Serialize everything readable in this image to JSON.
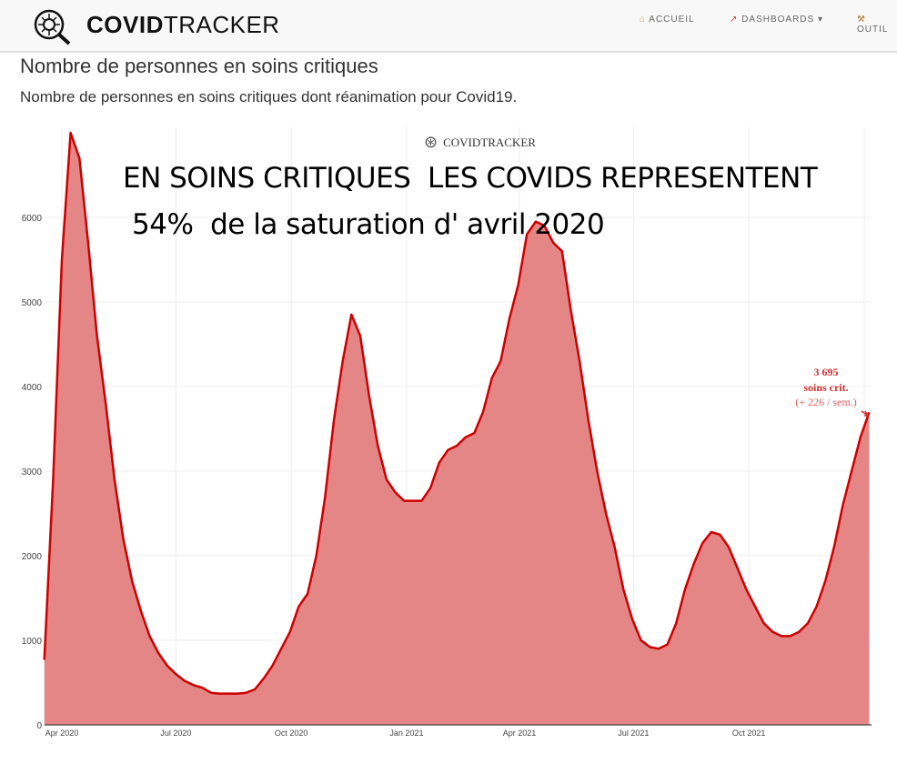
{
  "header": {
    "brand_bold": "COVID",
    "brand_light": "TRACKER",
    "nav": [
      {
        "icon": "house-icon",
        "label": "ACCUEIL"
      },
      {
        "icon": "chart-icon",
        "label": "DASHBOARDS"
      },
      {
        "icon": "tools-icon",
        "label": "OUTIL"
      }
    ]
  },
  "page": {
    "title": "Nombre de personnes en soins critiques",
    "subtitle": "Nombre de personnes en soins critiques dont réanimation pour Covid19."
  },
  "overlay": {
    "line1": "EN SOINS CRITIQUES  LES COVIDS REPRESENTENT",
    "line2": "54%  de la saturation d' avril 2020"
  },
  "watermark": "COVIDTRACKER",
  "colors": {
    "fill": "#e48080",
    "line": "#cc0000",
    "annotation": "#d03030"
  },
  "chart_data": {
    "type": "area",
    "title": "",
    "xlabel": "",
    "ylabel": "",
    "ylim": [
      0,
      7000
    ],
    "y_ticks": [
      0,
      1000,
      2000,
      3000,
      4000,
      5000,
      6000
    ],
    "x_ticks": [
      {
        "date": "2020-04-01",
        "label": "Apr 2020"
      },
      {
        "date": "2020-07-01",
        "label": "Jul 2020"
      },
      {
        "date": "2020-10-01",
        "label": "Oct 2020"
      },
      {
        "date": "2021-01-01",
        "label": "Jan 2021"
      },
      {
        "date": "2021-04-01",
        "label": "Apr 2021"
      },
      {
        "date": "2021-07-01",
        "label": "Jul 2021"
      },
      {
        "date": "2021-10-01",
        "label": "Oct 2021"
      },
      {
        "date": "2022-01-01",
        "label": ""
      }
    ],
    "grid": true,
    "annotation": {
      "value": "3 695",
      "label": "soins crit.",
      "change": "(+ 226 / sem.)"
    },
    "points": [
      [
        "2020-03-18",
        770
      ],
      [
        "2020-03-25",
        2900
      ],
      [
        "2020-04-01",
        5500
      ],
      [
        "2020-04-08",
        7000
      ],
      [
        "2020-04-15",
        6700
      ],
      [
        "2020-04-22",
        5700
      ],
      [
        "2020-04-29",
        4600
      ],
      [
        "2020-05-06",
        3800
      ],
      [
        "2020-05-13",
        2900
      ],
      [
        "2020-05-20",
        2200
      ],
      [
        "2020-05-27",
        1700
      ],
      [
        "2020-06-03",
        1350
      ],
      [
        "2020-06-10",
        1050
      ],
      [
        "2020-06-17",
        850
      ],
      [
        "2020-06-24",
        700
      ],
      [
        "2020-07-01",
        600
      ],
      [
        "2020-07-08",
        520
      ],
      [
        "2020-07-15",
        470
      ],
      [
        "2020-07-22",
        440
      ],
      [
        "2020-07-29",
        380
      ],
      [
        "2020-08-05",
        370
      ],
      [
        "2020-08-12",
        370
      ],
      [
        "2020-08-19",
        370
      ],
      [
        "2020-08-26",
        380
      ],
      [
        "2020-09-02",
        420
      ],
      [
        "2020-09-09",
        550
      ],
      [
        "2020-09-16",
        700
      ],
      [
        "2020-09-23",
        900
      ],
      [
        "2020-09-30",
        1100
      ],
      [
        "2020-10-07",
        1400
      ],
      [
        "2020-10-14",
        1550
      ],
      [
        "2020-10-21",
        2000
      ],
      [
        "2020-10-28",
        2700
      ],
      [
        "2020-11-04",
        3600
      ],
      [
        "2020-11-11",
        4300
      ],
      [
        "2020-11-18",
        4850
      ],
      [
        "2020-11-25",
        4600
      ],
      [
        "2020-12-02",
        3900
      ],
      [
        "2020-12-09",
        3300
      ],
      [
        "2020-12-16",
        2900
      ],
      [
        "2020-12-23",
        2750
      ],
      [
        "2020-12-30",
        2650
      ],
      [
        "2021-01-06",
        2650
      ],
      [
        "2021-01-13",
        2650
      ],
      [
        "2021-01-20",
        2800
      ],
      [
        "2021-01-27",
        3100
      ],
      [
        "2021-02-03",
        3250
      ],
      [
        "2021-02-10",
        3300
      ],
      [
        "2021-02-17",
        3400
      ],
      [
        "2021-02-24",
        3450
      ],
      [
        "2021-03-03",
        3700
      ],
      [
        "2021-03-10",
        4100
      ],
      [
        "2021-03-17",
        4300
      ],
      [
        "2021-03-24",
        4800
      ],
      [
        "2021-03-31",
        5200
      ],
      [
        "2021-04-07",
        5800
      ],
      [
        "2021-04-14",
        5950
      ],
      [
        "2021-04-21",
        5900
      ],
      [
        "2021-04-28",
        5700
      ],
      [
        "2021-05-05",
        5600
      ],
      [
        "2021-05-12",
        4900
      ],
      [
        "2021-05-19",
        4300
      ],
      [
        "2021-05-26",
        3600
      ],
      [
        "2021-06-02",
        3000
      ],
      [
        "2021-06-09",
        2500
      ],
      [
        "2021-06-16",
        2100
      ],
      [
        "2021-06-23",
        1600
      ],
      [
        "2021-06-30",
        1250
      ],
      [
        "2021-07-07",
        1000
      ],
      [
        "2021-07-14",
        920
      ],
      [
        "2021-07-21",
        900
      ],
      [
        "2021-07-28",
        950
      ],
      [
        "2021-08-04",
        1200
      ],
      [
        "2021-08-11",
        1600
      ],
      [
        "2021-08-18",
        1900
      ],
      [
        "2021-08-25",
        2150
      ],
      [
        "2021-09-01",
        2280
      ],
      [
        "2021-09-08",
        2250
      ],
      [
        "2021-09-15",
        2100
      ],
      [
        "2021-09-22",
        1850
      ],
      [
        "2021-09-29",
        1600
      ],
      [
        "2021-10-06",
        1400
      ],
      [
        "2021-10-13",
        1200
      ],
      [
        "2021-10-20",
        1100
      ],
      [
        "2021-10-27",
        1050
      ],
      [
        "2021-11-03",
        1050
      ],
      [
        "2021-11-10",
        1100
      ],
      [
        "2021-11-17",
        1200
      ],
      [
        "2021-11-24",
        1400
      ],
      [
        "2021-12-01",
        1700
      ],
      [
        "2021-12-08",
        2100
      ],
      [
        "2021-12-15",
        2600
      ],
      [
        "2021-12-22",
        3000
      ],
      [
        "2021-12-29",
        3400
      ],
      [
        "2022-01-05",
        3695
      ]
    ]
  }
}
